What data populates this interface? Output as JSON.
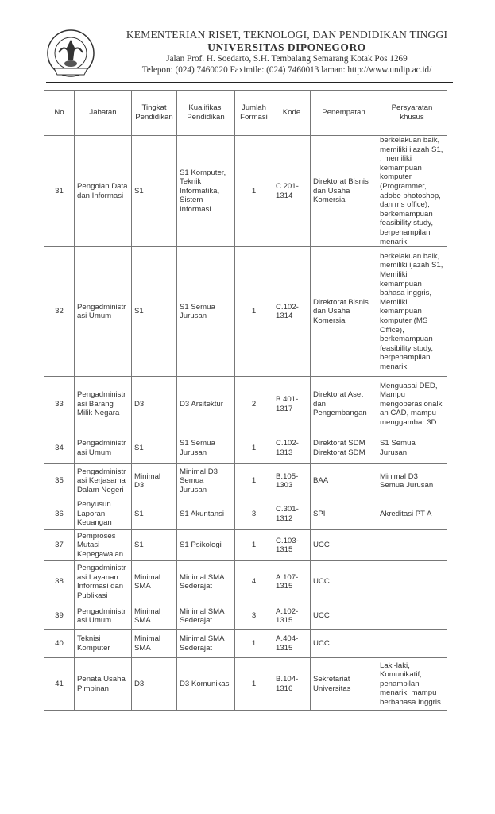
{
  "letterhead": {
    "ministry": "KEMENTERIAN RISET, TEKNOLOGI, DAN PENDIDIKAN TINGGI",
    "university": "UNIVERSITAS DIPONEGORO",
    "address": "Jalan Prof. H. Soedarto, S.H. Tembalang Semarang Kotak Pos 1269",
    "contact": "Telepon: (024) 7460020 Faximile: (024) 7460013 laman: http://www.undip.ac.id/",
    "logo_text": "UNIVERSITAS DIPONEGORO SEMARANG"
  },
  "table": {
    "headers": [
      "No",
      "Jabatan",
      "Tingkat\nPendidikan",
      "Kualifikasi\nPendidikan",
      "Jumlah\nFormasi",
      "Kode",
      "Penempatan",
      "Persyaratan\nkhusus"
    ],
    "rows": [
      [
        "31",
        "Pengolan Data\ndan Informasi",
        "S1",
        "S1 Komputer,\nTeknik\nInformatika,\nSistem\nInformasi",
        "1",
        "C.201-\n1314",
        "Direktorat Bisnis\ndan Usaha\nKomersial",
        "berkelakuan baik,\nmemiliki ijazah S1,\n, memiliki\nkemampuan\nkomputer\n(Programmer,\nadobe photoshop,\ndan ms office),\nberkemampuan\nfeasibility study,\nberpenampilan\nmenarik"
      ],
      [
        "32",
        "Pengadministr\nasi Umum",
        "S1",
        "S1 Semua\nJurusan",
        "1",
        "C.102-\n1314",
        "Direktorat Bisnis\ndan Usaha\nKomersial",
        "berkelakuan baik,\nmemiliki ijazah S1,\nMemiliki\nkemampuan\nbahasa inggris,\nMemiliki\nkemampuan\nkomputer (MS\nOffice),\nberkemampuan\nfeasibility study,\nberpenampilan\nmenarik"
      ],
      [
        "33",
        "Pengadministr\nasi Barang\nMilik Negara",
        "D3",
        "D3 Arsitektur",
        "2",
        "B.401-\n1317",
        "Direktorat Aset\ndan\nPengembangan",
        "Menguasai DED,\nMampu\nmengoperasionalk\nan CAD, mampu\nmenggambar 3D"
      ],
      [
        "34",
        "Pengadministr\nasi Umum",
        "S1",
        "S1 Semua\nJurusan",
        "1",
        "C.102-\n1313",
        "Direktorat SDM\nDirektorat SDM",
        "S1 Semua\nJurusan"
      ],
      [
        "35",
        "Pengadministr\nasi Kerjasama\nDalam Negeri",
        "Minimal\nD3",
        "Minimal D3\nSemua\nJurusan",
        "1",
        "B.105-\n1303",
        "BAA",
        "Minimal D3\nSemua Jurusan"
      ],
      [
        "36",
        "Penyusun\nLaporan\nKeuangan",
        "S1",
        "S1 Akuntansi",
        "3",
        "C.301-\n1312",
        "SPI",
        "Akreditasi PT A"
      ],
      [
        "37",
        "Pemproses\nMutasi\nKepegawaian",
        "S1",
        "S1 Psikologi",
        "1",
        "C.103-\n1315",
        "UCC",
        ""
      ],
      [
        "38",
        "Pengadministr\nasi Layanan\nInformasi dan\nPublikasi",
        "Minimal\nSMA",
        "Minimal SMA\nSederajat",
        "4",
        "A.107-\n1315",
        "UCC",
        ""
      ],
      [
        "39",
        "Pengadministr\nasi Umum",
        "Minimal\nSMA",
        "Minimal SMA\nSederajat",
        "3",
        "A.102-\n1315",
        "UCC",
        ""
      ],
      [
        "40",
        "Teknisi\nKomputer",
        "Minimal\nSMA",
        "Minimal SMA\nSederajat",
        "1",
        "A.404-\n1315",
        "UCC",
        ""
      ],
      [
        "41",
        "Penata Usaha\nPimpinan",
        "D3",
        "D3 Komunikasi",
        "1",
        "B.104-\n1316",
        "Sekretariat\nUniversitas",
        "Laki-laki,\nKomunikatif,\npenampilan\nmenarik, mampu\nberbahasa Inggris"
      ]
    ]
  }
}
